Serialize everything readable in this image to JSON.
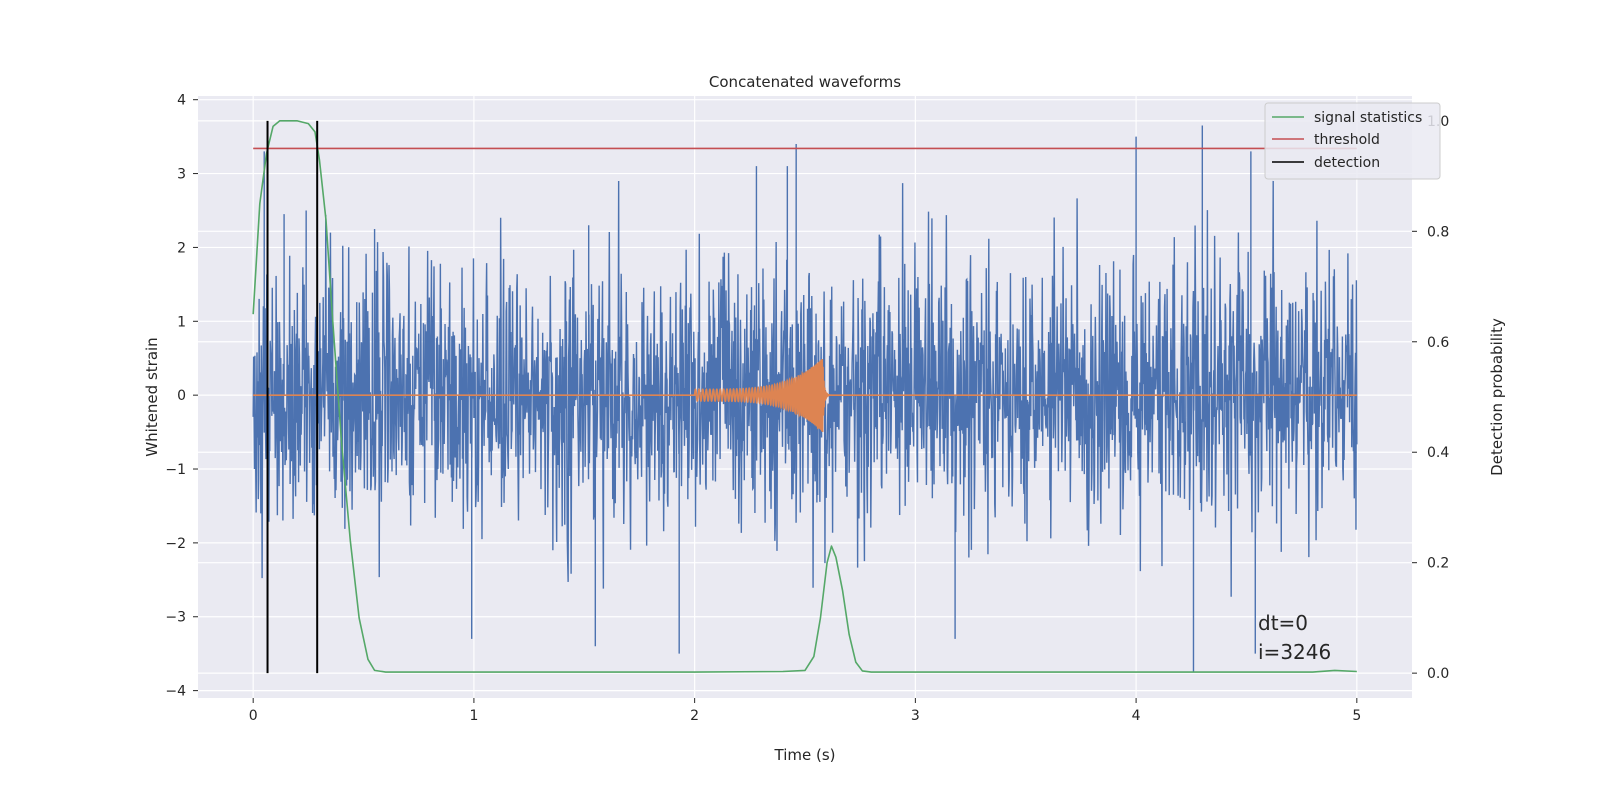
{
  "chart_data": {
    "type": "line",
    "title": "Concatenated waveforms",
    "xlabel": "Time (s)",
    "ylabel": "Whitened strain",
    "y2label": "Detection probability",
    "xlim": [
      -0.25,
      5.25
    ],
    "ylim": [
      -4.1,
      4.05
    ],
    "y2lim": [
      -0.045,
      1.045
    ],
    "xticks": [
      0,
      1,
      2,
      3,
      4,
      5
    ],
    "xtick_labels": [
      "0",
      "1",
      "2",
      "3",
      "4",
      "5"
    ],
    "yticks": [
      4,
      3,
      2,
      1,
      0,
      -1,
      -2,
      -3,
      -4
    ],
    "ytick_labels": [
      "4",
      "3",
      "2",
      "1",
      "0",
      "−1",
      "−2",
      "−3",
      "−4"
    ],
    "y2ticks": [
      1.0,
      0.8,
      0.6,
      0.4,
      0.2,
      0.0
    ],
    "y2tick_labels": [
      "1.0",
      "0.8",
      "0.6",
      "0.4",
      "0.2",
      "0.0"
    ],
    "grid": true,
    "legend_position": "top-right",
    "series": [
      {
        "name": "",
        "axis": "left",
        "kind": "noise",
        "color": "#4c72b0",
        "x_range": [
          0,
          5
        ],
        "amplitude_std": 0.85,
        "peaks": [
          {
            "x": 0.05,
            "y": 3.3
          },
          {
            "x": 0.14,
            "y": 2.45
          },
          {
            "x": 0.24,
            "y": 2.5
          },
          {
            "x": 0.55,
            "y": 2.25
          },
          {
            "x": 1.52,
            "y": 2.3
          },
          {
            "x": 2.28,
            "y": 3.1
          },
          {
            "x": 2.42,
            "y": 3.1
          },
          {
            "x": 2.46,
            "y": 3.4
          },
          {
            "x": 4.0,
            "y": 3.5
          },
          {
            "x": 4.3,
            "y": 3.65
          },
          {
            "x": 4.52,
            "y": 3.3
          },
          {
            "x": 1.93,
            "y": -3.5
          },
          {
            "x": 0.99,
            "y": -3.3
          },
          {
            "x": 4.26,
            "y": -3.75
          },
          {
            "x": 4.54,
            "y": -3.5
          },
          {
            "x": 1.55,
            "y": -3.4
          },
          {
            "x": 3.18,
            "y": -3.3
          }
        ]
      },
      {
        "name": "",
        "axis": "left",
        "kind": "chirp",
        "color": "#dd8452",
        "x_start": 2.0,
        "x_merge": 2.58,
        "x_ring_end": 2.65,
        "start_amplitude": 0.08,
        "peak_amplitude": 0.5
      },
      {
        "name": "signal statistics",
        "axis": "right",
        "color": "#55a868",
        "x": [
          0.0,
          0.03,
          0.06,
          0.09,
          0.12,
          0.16,
          0.2,
          0.25,
          0.28,
          0.3,
          0.33,
          0.36,
          0.4,
          0.44,
          0.48,
          0.52,
          0.55,
          0.6,
          1.0,
          2.0,
          2.4,
          2.5,
          2.54,
          2.57,
          2.6,
          2.62,
          2.64,
          2.67,
          2.7,
          2.73,
          2.76,
          2.8,
          3.0,
          4.0,
          4.8,
          4.9,
          5.0
        ],
        "y": [
          0.65,
          0.85,
          0.94,
          0.99,
          1.0,
          1.0,
          1.0,
          0.995,
          0.98,
          0.93,
          0.82,
          0.64,
          0.42,
          0.24,
          0.1,
          0.025,
          0.005,
          0.002,
          0.002,
          0.002,
          0.003,
          0.005,
          0.03,
          0.1,
          0.2,
          0.23,
          0.21,
          0.15,
          0.07,
          0.02,
          0.004,
          0.002,
          0.002,
          0.002,
          0.002,
          0.005,
          0.003
        ]
      },
      {
        "name": "threshold",
        "axis": "right",
        "color": "#c44e52",
        "x": [
          0,
          5
        ],
        "y": [
          0.95,
          0.95
        ]
      },
      {
        "name": "detection",
        "axis": "right",
        "color": "#000000",
        "kind": "vlines",
        "x": [
          0.065,
          0.29
        ],
        "y_range": [
          0.0,
          1.0
        ]
      }
    ],
    "annotations": [
      "dt=0",
      "i=3246"
    ]
  }
}
